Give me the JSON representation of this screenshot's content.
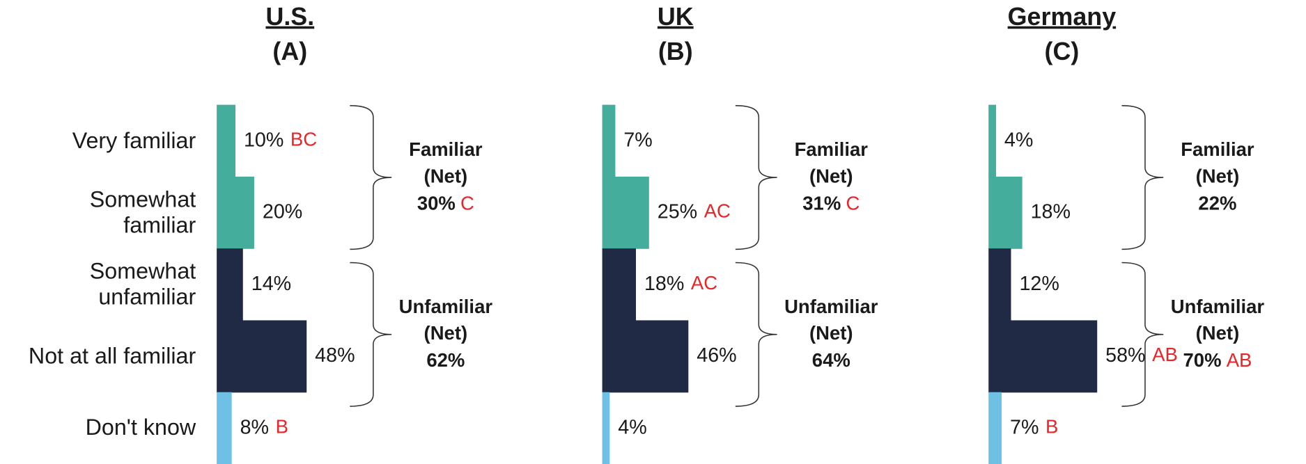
{
  "chart_data": [
    {
      "type": "bar",
      "title": "U.S.",
      "subtitle": "(A)",
      "categories": [
        "Very familiar",
        "Somewhat familiar",
        "Somewhat unfamiliar",
        "Not at all familiar",
        "Don't know"
      ],
      "values": [
        10,
        20,
        14,
        48,
        8
      ],
      "value_labels": [
        "10%",
        "20%",
        "14%",
        "48%",
        "8%"
      ],
      "sig_letters": [
        "BC",
        null,
        null,
        null,
        "B"
      ],
      "colors": [
        "#45ad9c",
        "#45ad9c",
        "#212a44",
        "#212a44",
        "#6ec1e4"
      ],
      "nets": [
        {
          "label_lines": [
            "Familiar",
            "(Net)"
          ],
          "value": 30,
          "value_label": "30%",
          "sig": "C"
        },
        {
          "label_lines": [
            "Unfamiliar",
            "(Net)"
          ],
          "value": 62,
          "value_label": "62%",
          "sig": null
        }
      ]
    },
    {
      "type": "bar",
      "title": "UK",
      "subtitle": "(B)",
      "values": [
        7,
        25,
        18,
        46,
        4
      ],
      "value_labels": [
        "7%",
        "25%",
        "18%",
        "46%",
        "4%"
      ],
      "sig_letters": [
        null,
        "AC",
        "AC",
        null,
        null
      ],
      "colors": [
        "#45ad9c",
        "#45ad9c",
        "#212a44",
        "#212a44",
        "#6ec1e4"
      ],
      "nets": [
        {
          "label_lines": [
            "Familiar",
            "(Net)"
          ],
          "value": 31,
          "value_label": "31%",
          "sig": "C"
        },
        {
          "label_lines": [
            "Unfamiliar",
            "(Net)"
          ],
          "value": 64,
          "value_label": "64%",
          "sig": null
        }
      ]
    },
    {
      "type": "bar",
      "title": "Germany",
      "subtitle": "(C)",
      "values": [
        4,
        18,
        12,
        58,
        7
      ],
      "value_labels": [
        "4%",
        "18%",
        "12%",
        "58%",
        "7%"
      ],
      "sig_letters": [
        null,
        null,
        null,
        "AB",
        "B"
      ],
      "colors": [
        "#45ad9c",
        "#45ad9c",
        "#212a44",
        "#212a44",
        "#6ec1e4"
      ],
      "nets": [
        {
          "label_lines": [
            "Familiar",
            "(Net)"
          ],
          "value": 22,
          "value_label": "22%",
          "sig": null
        },
        {
          "label_lines": [
            "Unfamiliar",
            "(Net)"
          ],
          "value": 70,
          "value_label": "70%",
          "sig": "AB"
        }
      ]
    }
  ]
}
